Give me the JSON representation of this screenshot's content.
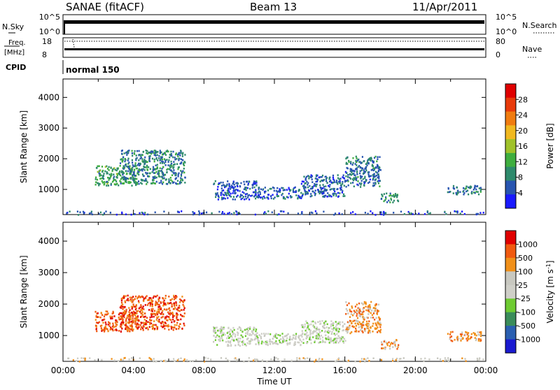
{
  "header": {
    "station": "SANAE (fitACF)",
    "beam": "Beam 13",
    "date": "11/Apr/2011"
  },
  "aux_panels": {
    "nsky": {
      "left_label": "N.Sky",
      "right_label": "N.Search",
      "left_ticks": [
        "10^5",
        "10^0"
      ],
      "right_ticks": [
        "10^5",
        "10^0"
      ]
    },
    "freq": {
      "left_label": "Freq.",
      "left_unit": "[MHz]",
      "right_label": "Nave",
      "left_ticks": [
        "18",
        "8"
      ],
      "right_ticks": [
        "80",
        "0"
      ]
    },
    "cpid": {
      "label": "CPID",
      "value": "normal 150"
    }
  },
  "x_axis": {
    "label": "Time UT",
    "ticks": [
      "00:00",
      "04:00",
      "08:00",
      "12:00",
      "16:00",
      "20:00",
      "00:00"
    ]
  },
  "colors": {
    "frame": "#000000",
    "power_scale": [
      "#1a1aff",
      "#2855b0",
      "#2e8a6c",
      "#3fae3f",
      "#a0c22a",
      "#f0b820",
      "#f07c10",
      "#e83a0a",
      "#e00000"
    ],
    "velocity_scale": [
      "#e00000",
      "#f05a10",
      "#f0901a",
      "#c8c8c0",
      "#cfcfc8",
      "#6ecb32",
      "#3a8c5a",
      "#2a5fb0",
      "#1a1ad0"
    ]
  },
  "chart_data": [
    {
      "type": "heatmap",
      "name": "power",
      "xlabel": "Time UT",
      "ylabel": "Slant Range [km]",
      "xlim": [
        0,
        24
      ],
      "ylim": [
        180,
        4600
      ],
      "yticks": [
        1000,
        2000,
        3000,
        4000
      ],
      "colorbar": {
        "label": "Power [dB]",
        "ticks": [
          4,
          8,
          12,
          16,
          20,
          24,
          28
        ],
        "range": [
          0,
          32
        ]
      },
      "regions": [
        {
          "t0": 1.8,
          "t1": 4.2,
          "r0": 1150,
          "r1": 1800,
          "level": 10
        },
        {
          "t0": 3.2,
          "t1": 6.9,
          "r0": 1200,
          "r1": 2300,
          "level": 7
        },
        {
          "t0": 8.5,
          "t1": 11.0,
          "r0": 700,
          "r1": 1300,
          "level": 4
        },
        {
          "t0": 11.0,
          "t1": 13.5,
          "r0": 720,
          "r1": 1100,
          "level": 4
        },
        {
          "t0": 13.5,
          "t1": 16.0,
          "r0": 780,
          "r1": 1500,
          "level": 5
        },
        {
          "t0": 16.0,
          "t1": 18.0,
          "r0": 1100,
          "r1": 2100,
          "level": 6
        },
        {
          "t0": 18.0,
          "t1": 19.0,
          "r0": 600,
          "r1": 900,
          "level": 9
        },
        {
          "t0": 21.8,
          "t1": 23.7,
          "r0": 850,
          "r1": 1150,
          "level": 6
        },
        {
          "t0": 0.1,
          "t1": 23.9,
          "r0": 200,
          "r1": 320,
          "level": 3
        }
      ]
    },
    {
      "type": "heatmap",
      "name": "velocity",
      "xlabel": "Time UT",
      "ylabel": "Slant Range [km]",
      "xlim": [
        0,
        24
      ],
      "ylim": [
        180,
        4600
      ],
      "yticks": [
        1000,
        2000,
        3000,
        4000
      ],
      "colorbar": {
        "label": "Velocity [m s^-1]",
        "ticks": [
          "1000",
          "500",
          "100",
          "25",
          "-25",
          "-100",
          "-500",
          "-1000"
        ]
      },
      "regions": [
        {
          "t0": 1.8,
          "t1": 4.2,
          "r0": 1150,
          "r1": 1800,
          "cls": 1
        },
        {
          "t0": 3.2,
          "t1": 6.9,
          "r0": 1200,
          "r1": 2300,
          "cls": 1
        },
        {
          "t0": 8.5,
          "t1": 11.0,
          "r0": 700,
          "r1": 1300,
          "cls": 4
        },
        {
          "t0": 11.0,
          "t1": 13.5,
          "r0": 720,
          "r1": 1100,
          "cls": 4
        },
        {
          "t0": 13.5,
          "t1": 16.0,
          "r0": 780,
          "r1": 1500,
          "cls": 4
        },
        {
          "t0": 16.0,
          "t1": 18.0,
          "r0": 1100,
          "r1": 2100,
          "cls": 2
        },
        {
          "t0": 18.0,
          "t1": 19.0,
          "r0": 600,
          "r1": 900,
          "cls": 2
        },
        {
          "t0": 21.8,
          "t1": 23.7,
          "r0": 850,
          "r1": 1150,
          "cls": 2
        },
        {
          "t0": 0.1,
          "t1": 23.9,
          "r0": 200,
          "r1": 320,
          "cls": 3
        }
      ]
    }
  ]
}
